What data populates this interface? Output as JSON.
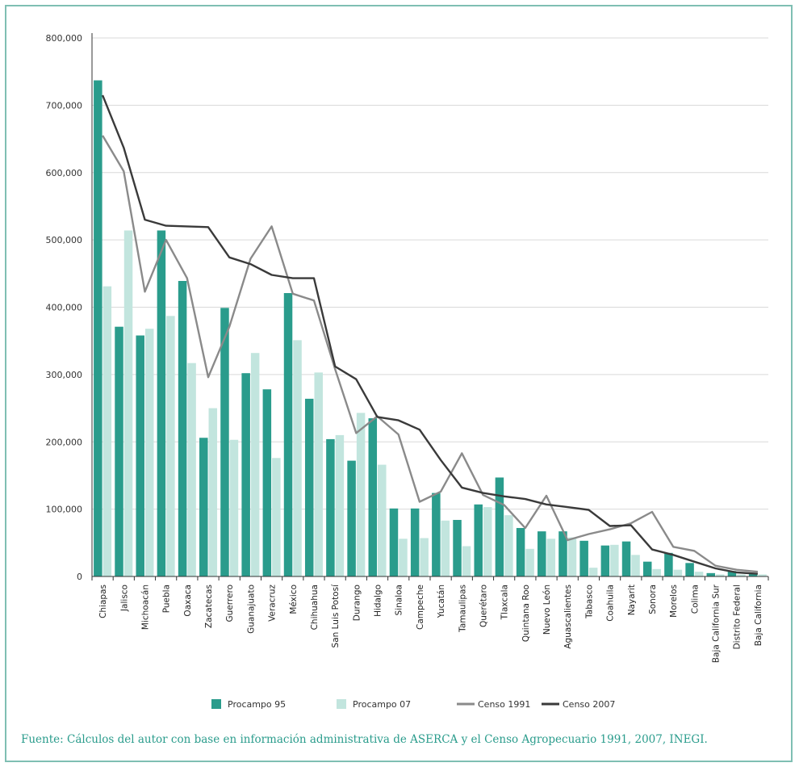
{
  "chart_data": {
    "type": "bar",
    "categories": [
      "Chiapas",
      "Jalisco",
      "Michoacán",
      "Puebla",
      "Oaxaca",
      "Zacatecas",
      "Guerrero",
      "Guanajuato",
      "Veracruz",
      "México",
      "Chihuahua",
      "San Luis Potosí",
      "Durango",
      "Hidalgo",
      "Sinaloa",
      "Campeche",
      "Yucatán",
      "Tamaulipas",
      "Querétaro",
      "Tlaxcala",
      "Quintana Roo",
      "Nuevo León",
      "Aguascalientes",
      "Tabasco",
      "Coahuila",
      "Nayarit",
      "Sonora",
      "Morelos",
      "Colima",
      "Baja California Sur",
      "Distrito Federal",
      "Baja California"
    ],
    "series": [
      {
        "name": "Procampo 95",
        "kind": "bar",
        "color": "#2a9c8c",
        "values": [
          737000,
          371000,
          358000,
          514000,
          439000,
          206000,
          399000,
          302000,
          278000,
          421000,
          264000,
          204000,
          172000,
          235000,
          101000,
          101000,
          124000,
          84000,
          107000,
          147000,
          72000,
          67000,
          67000,
          53000,
          46000,
          52000,
          22000,
          35000,
          20000,
          5000,
          8000,
          5000
        ]
      },
      {
        "name": "Procampo 07",
        "kind": "bar",
        "color": "#c2e5de",
        "values": [
          431000,
          514000,
          368000,
          387000,
          317000,
          250000,
          203000,
          332000,
          176000,
          351000,
          303000,
          210000,
          243000,
          166000,
          56000,
          57000,
          83000,
          45000,
          103000,
          91000,
          41000,
          56000,
          58000,
          13000,
          47000,
          32000,
          11000,
          10000,
          7000,
          3000,
          3000,
          3000
        ]
      },
      {
        "name": "Censo 1991",
        "kind": "line",
        "color": "#8a8a8a",
        "values": [
          655000,
          602000,
          423000,
          500000,
          443000,
          296000,
          371000,
          472000,
          520000,
          420000,
          410000,
          308000,
          213000,
          238000,
          211000,
          111000,
          126000,
          183000,
          121000,
          106000,
          72000,
          120000,
          54000,
          63000,
          70000,
          79000,
          96000,
          44000,
          38000,
          16000,
          10000,
          7000
        ]
      },
      {
        "name": "Censo 2007",
        "kind": "line",
        "color": "#3a3a3a",
        "values": [
          715000,
          637000,
          530000,
          521000,
          520000,
          519000,
          474000,
          464000,
          448000,
          443000,
          443000,
          312000,
          293000,
          237000,
          232000,
          218000,
          173000,
          132000,
          124000,
          119000,
          115000,
          107000,
          103000,
          99000,
          75000,
          76000,
          40000,
          32000,
          22000,
          12000,
          6000,
          4000
        ]
      }
    ],
    "yticks": [
      0,
      100000,
      200000,
      300000,
      400000,
      500000,
      600000,
      700000,
      800000
    ],
    "ytick_labels": [
      "0",
      "100,000",
      "200,000",
      "300,000",
      "400,000",
      "500,000",
      "600,000",
      "700,000",
      "800,000"
    ],
    "ylim": [
      0,
      800000
    ],
    "grid": true,
    "legend_position": "bottom"
  },
  "source_note": "Fuente: Cálculos del autor con base en información administrativa de ASERCA y el Censo Agropecuario 1991, 2007, INEGI."
}
